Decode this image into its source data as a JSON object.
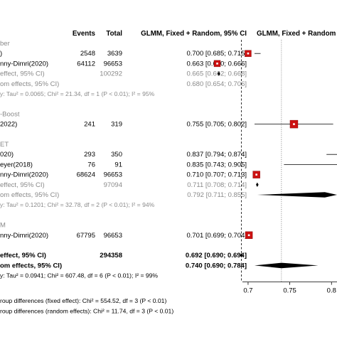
{
  "chart_data": {
    "type": "forest",
    "columns": {
      "events": "Events",
      "total": "Total",
      "estimate": "GLMM, Fixed + Random, 95% CI",
      "plot": "GLMM, Fixed + Random"
    },
    "xaxis": {
      "ticks": [
        0.7,
        0.75,
        0.8
      ],
      "xlim": [
        0.66,
        0.81
      ],
      "reference_lines": {
        "fixed": 0.692,
        "random": 0.74
      }
    },
    "rows": [
      {
        "kind": "group",
        "label": "ber"
      },
      {
        "kind": "study",
        "label": ")",
        "events": "2548",
        "total": "3639",
        "ci": "0.700 [0.685; 0.715]",
        "est": 0.7,
        "lo": 0.685,
        "hi": 0.715,
        "w": 9
      },
      {
        "kind": "study",
        "label": "nny-Dimri(2020)",
        "events": "64112",
        "total": "96653",
        "ci": "0.663 [0.660; 0.666]",
        "est": 0.663,
        "lo": 0.66,
        "hi": 0.666,
        "w": 9
      },
      {
        "kind": "fixed_sub",
        "label": "effect, 95% CI)",
        "events": "",
        "total": "100292",
        "ci": "0.665 [0.662; 0.668]",
        "est": 0.665,
        "lo": 0.662,
        "hi": 0.668
      },
      {
        "kind": "random_sub",
        "label": "om effects, 95% CI)",
        "events": "",
        "total": "",
        "ci": "0.680 [0.654; 0.706]",
        "est": 0.68,
        "lo": 0.654,
        "hi": 0.706
      },
      {
        "kind": "het",
        "label": "y: Tau² = 0.0065; Chi² = 21.34, df = 1 (P < 0.01); I² = 95%"
      },
      {
        "kind": "blank"
      },
      {
        "kind": "group",
        "label": "-Boost"
      },
      {
        "kind": "study",
        "label": "2022)",
        "events": "241",
        "total": "319",
        "ci": "0.755 [0.705; 0.802]",
        "est": 0.755,
        "lo": 0.705,
        "hi": 0.802,
        "w": 11
      },
      {
        "kind": "blank"
      },
      {
        "kind": "group",
        "label": "ET"
      },
      {
        "kind": "study",
        "label": "020)",
        "events": "293",
        "total": "350",
        "ci": "0.837 [0.794; 0.874]",
        "est": 0.837,
        "lo": 0.794,
        "hi": 0.874,
        "w": 10
      },
      {
        "kind": "study",
        "label": "eyer(2018)",
        "events": "76",
        "total": "91",
        "ci": "0.835 [0.743; 0.905]",
        "est": 0.835,
        "lo": 0.743,
        "hi": 0.905,
        "w": 8
      },
      {
        "kind": "study",
        "label": "nny-Dimri(2020)",
        "events": "68624",
        "total": "96653",
        "ci": "0.710 [0.707; 0.713]",
        "est": 0.71,
        "lo": 0.707,
        "hi": 0.713,
        "w": 10
      },
      {
        "kind": "fixed_sub",
        "label": "effect, 95% CI)",
        "events": "",
        "total": "97094",
        "ci": "0.711 [0.708; 0.714]",
        "est": 0.711,
        "lo": 0.708,
        "hi": 0.714
      },
      {
        "kind": "random_sub",
        "label": "om effects, 95% CI)",
        "events": "",
        "total": "",
        "ci": "0.792 [0.711; 0.855]",
        "est": 0.792,
        "lo": 0.711,
        "hi": 0.855
      },
      {
        "kind": "het",
        "label": "y: Tau² = 0.1201; Chi² = 32.78, df = 2 (P < 0.01); I² = 94%"
      },
      {
        "kind": "blank"
      },
      {
        "kind": "group",
        "label": "M"
      },
      {
        "kind": "study",
        "label": "nny-Dimri(2020)",
        "events": "67795",
        "total": "96653",
        "ci": "0.701 [0.699; 0.704]",
        "est": 0.701,
        "lo": 0.699,
        "hi": 0.704,
        "w": 10
      },
      {
        "kind": "blank"
      },
      {
        "kind": "fixed_total",
        "label": "effect, 95% CI)",
        "events": "",
        "total": "294358",
        "ci": "0.692 [0.690; 0.694]",
        "est": 0.692,
        "lo": 0.69,
        "hi": 0.694
      },
      {
        "kind": "random_total",
        "label": "om effects, 95% CI)",
        "events": "",
        "total": "",
        "ci": "0.740 [0.690; 0.784]",
        "est": 0.74,
        "lo": 0.69,
        "hi": 0.784
      },
      {
        "kind": "het_black",
        "label": "y: Tau² = 0.0941; Chi² = 607.48, df = 6 (P < 0.01); I² = 99%"
      }
    ],
    "footnotes": [
      "roup differences (fixed effect): Chi² = 554.52, df = 3 (P < 0.01)",
      "roup differences (random effects): Chi² = 11.74, df = 3 (P < 0.01)"
    ],
    "colors": {
      "square": "#cc1111",
      "line": "#000000",
      "gray": "#8a8a8a"
    }
  }
}
